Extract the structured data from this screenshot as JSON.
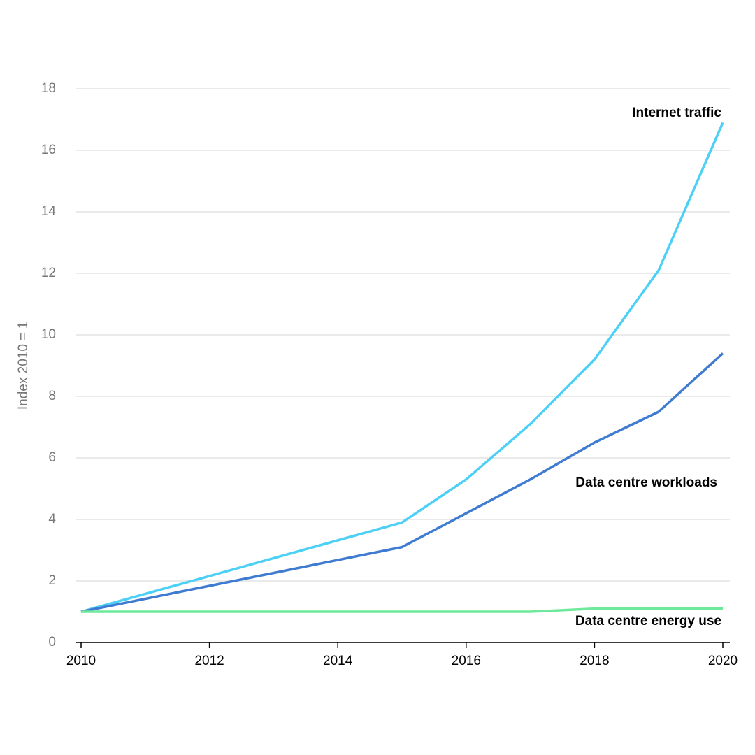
{
  "chart_data": {
    "type": "line",
    "y_label": "Index 2010 = 1",
    "x": [
      2010,
      2015,
      2016,
      2017,
      2018,
      2019,
      2020
    ],
    "series": [
      {
        "name": "Internet traffic",
        "color": "#4dd0f5",
        "values": [
          1,
          3.9,
          5.3,
          7.1,
          9.2,
          12.1,
          16.9
        ]
      },
      {
        "name": "Data centre workloads",
        "color": "#3f7bd1",
        "values": [
          1,
          3.1,
          4.2,
          5.3,
          6.5,
          7.5,
          9.4
        ]
      },
      {
        "name": "Data centre energy use",
        "color": "#6ee89a",
        "values": [
          1,
          1,
          1,
          1,
          1.1,
          1.1,
          1.1
        ]
      }
    ],
    "xlim": [
      2010,
      2020
    ],
    "xticks": [
      2010,
      2012,
      2014,
      2016,
      2018,
      2020
    ],
    "ylim": [
      0,
      18
    ],
    "yticks": [
      0,
      2,
      4,
      6,
      8,
      10,
      12,
      14,
      16,
      18
    ],
    "grid": true
  }
}
